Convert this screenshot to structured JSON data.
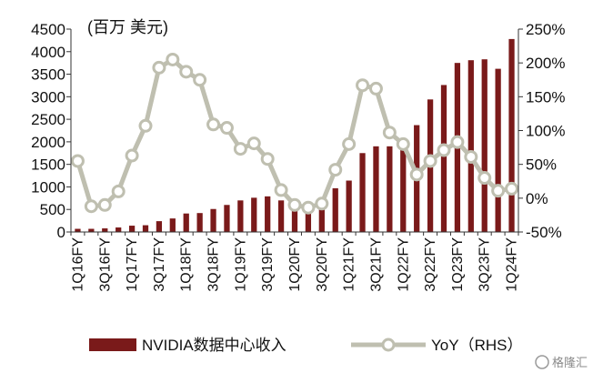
{
  "chart_data": {
    "type": "bar+line",
    "title": "",
    "unit_label": "(百万 美元)",
    "categories": [
      "1Q16FY",
      "2Q16FY",
      "3Q16FY",
      "4Q16FY",
      "1Q17FY",
      "2Q17FY",
      "3Q17FY",
      "4Q17FY",
      "1Q18FY",
      "2Q18FY",
      "3Q18FY",
      "4Q18FY",
      "1Q19FY",
      "2Q19FY",
      "3Q19FY",
      "4Q19FY",
      "1Q20FY",
      "2Q20FY",
      "3Q20FY",
      "4Q20FY",
      "1Q21FY",
      "2Q21FY",
      "3Q21FY",
      "4Q21FY",
      "1Q22FY",
      "2Q22FY",
      "3Q22FY",
      "4Q22FY",
      "1Q23FY",
      "2Q23FY",
      "3Q23FY",
      "4Q23FY",
      "1Q24FY"
    ],
    "x_tick_labels": [
      "1Q16FY",
      "3Q16FY",
      "1Q17FY",
      "3Q17FY",
      "1Q18FY",
      "3Q18FY",
      "1Q19FY",
      "3Q19FY",
      "1Q20FY",
      "3Q20FY",
      "1Q21FY",
      "3Q21FY",
      "1Q22FY",
      "3Q22FY",
      "1Q23FY",
      "3Q23FY",
      "1Q24FY"
    ],
    "series": [
      {
        "name": "NVIDIA数据中心收入",
        "type": "bar",
        "axis": "left",
        "color": "#7a1a1a",
        "values": [
          70,
          70,
          80,
          100,
          140,
          150,
          240,
          300,
          410,
          420,
          510,
          600,
          700,
          760,
          790,
          700,
          630,
          660,
          730,
          970,
          1140,
          1750,
          1900,
          1900,
          2050,
          2370,
          2940,
          3260,
          3750,
          3810,
          3830,
          3620,
          4280
        ]
      },
      {
        "name": "YoY（RHS）",
        "type": "line",
        "axis": "right",
        "color": "#bfbfb0",
        "values": [
          55,
          -12,
          -10,
          10,
          63,
          107,
          193,
          205,
          187,
          175,
          109,
          104,
          73,
          81,
          58,
          12,
          -10,
          -14,
          -8,
          42,
          80,
          167,
          162,
          97,
          80,
          35,
          55,
          71,
          83,
          61,
          30,
          11,
          14
        ]
      }
    ],
    "y_left": {
      "ticks": [
        0,
        500,
        1000,
        1500,
        2000,
        2500,
        3000,
        3500,
        4000,
        4500
      ],
      "min": 0,
      "max": 4500
    },
    "y_right": {
      "ticks": [
        "250%",
        "200%",
        "150%",
        "100%",
        "50%",
        "0%",
        "-50%"
      ],
      "tick_values": [
        250,
        200,
        150,
        100,
        50,
        0,
        -50
      ],
      "min": -50,
      "max": 250
    },
    "legend": {
      "position": "bottom",
      "items": [
        {
          "label": "NVIDIA数据中心收入",
          "kind": "bar",
          "color": "#7a1a1a"
        },
        {
          "label": "YoY（RHS）",
          "kind": "line",
          "color": "#bfbfb0"
        }
      ]
    },
    "grid": false
  },
  "watermark": "格隆汇"
}
